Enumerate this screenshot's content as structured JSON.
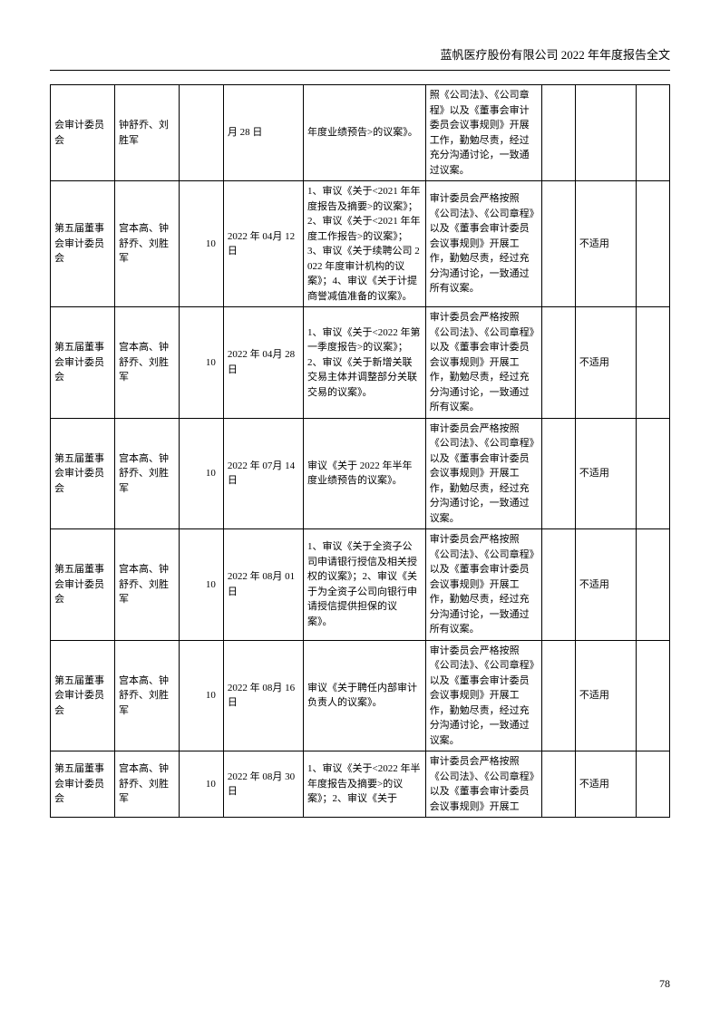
{
  "header": "蓝帆医疗股份有限公司 2022 年年度报告全文",
  "pageNumber": "78",
  "table": {
    "columns": [
      "c1",
      "c2",
      "c3",
      "c4",
      "c5",
      "c6",
      "c7",
      "c8",
      "c9"
    ],
    "rows": [
      {
        "cells": [
          "会审计委员会",
          "钟舒乔、刘胜军",
          "",
          "月 28 日",
          "年度业绩预告>的议案》。",
          "照《公司法》、《公司章程》以及《董事会审计委员会议事规则》开展工作，勤勉尽责，经过充分沟通讨论，一致通过议案。",
          "",
          "",
          ""
        ]
      },
      {
        "cells": [
          "第五届董事会审计委员会",
          "宫本高、钟舒乔、刘胜军",
          "10",
          "2022 年 04月 12 日",
          "1、审议《关于<2021 年年度报告及摘要>的议案》；2、审议《关于<2021 年年度工作报告>的议案》；3、审议《关于续聘公司 2022 年度审计机构的议案》；4、审议《关于计提商誉减值准备的议案》。",
          "审计委员会严格按照《公司法》、《公司章程》以及《董事会审计委员会议事规则》开展工作，勤勉尽责，经过充分沟通讨论，一致通过所有议案。",
          "",
          "不适用",
          ""
        ]
      },
      {
        "cells": [
          "第五届董事会审计委员会",
          "宫本高、钟舒乔、刘胜军",
          "10",
          "2022 年 04月 28 日",
          "1、审议《关于<2022 年第一季度报告>的议案》；2、审议《关于新增关联交易主体并调整部分关联交易的议案》。",
          "审计委员会严格按照《公司法》、《公司章程》以及《董事会审计委员会议事规则》开展工作，勤勉尽责，经过充分沟通讨论，一致通过所有议案。",
          "",
          "不适用",
          ""
        ]
      },
      {
        "cells": [
          "第五届董事会审计委员会",
          "宫本高、钟舒乔、刘胜军",
          "10",
          "2022 年 07月 14 日",
          "审议《关于 2022 年半年度业绩预告的议案》。",
          "审计委员会严格按照《公司法》、《公司章程》以及《董事会审计委员会议事规则》开展工作，勤勉尽责，经过充分沟通讨论，一致通过议案。",
          "",
          "不适用",
          ""
        ]
      },
      {
        "cells": [
          "第五届董事会审计委员会",
          "宫本高、钟舒乔、刘胜军",
          "10",
          "2022 年 08月 01 日",
          "1、审议《关于全资子公司申请银行授信及相关授权的议案》；2、审议《关于为全资子公司向银行申请授信提供担保的议案》。",
          "审计委员会严格按照《公司法》、《公司章程》以及《董事会审计委员会议事规则》开展工作，勤勉尽责，经过充分沟通讨论，一致通过所有议案。",
          "",
          "不适用",
          ""
        ]
      },
      {
        "cells": [
          "第五届董事会审计委员会",
          "宫本高、钟舒乔、刘胜军",
          "10",
          "2022 年 08月 16 日",
          "审议《关于聘任内部审计负责人的议案》。",
          "审计委员会严格按照《公司法》、《公司章程》以及《董事会审计委员会议事规则》开展工作，勤勉尽责，经过充分沟通讨论，一致通过议案。",
          "",
          "不适用",
          ""
        ]
      },
      {
        "cells": [
          "第五届董事会审计委员会",
          "宫本高、钟舒乔、刘胜军",
          "10",
          "2022 年 08月 30 日",
          "1、审议《关于<2022 年半年度报告及摘要>的议案》；2、审议《关于",
          "审计委员会严格按照《公司法》、《公司章程》以及《董事会审计委员会议事规则》开展工",
          "",
          "不适用",
          ""
        ]
      }
    ]
  }
}
